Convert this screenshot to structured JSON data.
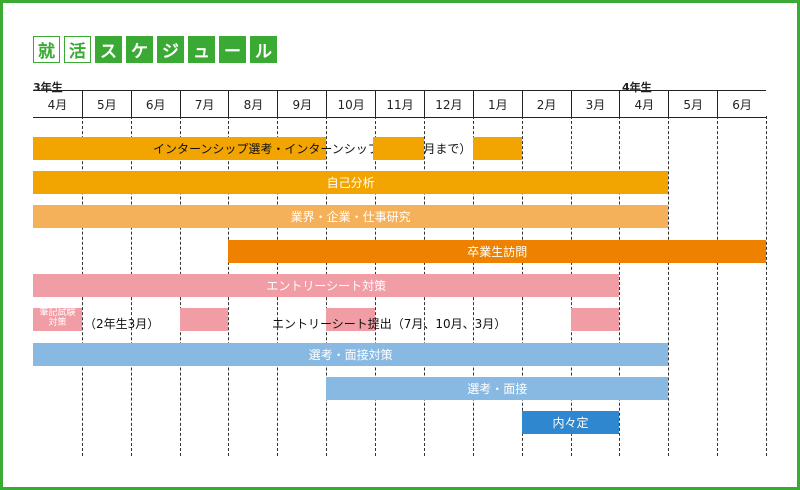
{
  "title": {
    "chars": [
      {
        "text": "就",
        "style": "outline"
      },
      {
        "text": "活",
        "style": "outline"
      },
      {
        "text": "ス",
        "style": "solid"
      },
      {
        "text": "ケ",
        "style": "solid"
      },
      {
        "text": "ジ",
        "style": "solid"
      },
      {
        "text": "ュ",
        "style": "solid"
      },
      {
        "text": "ー",
        "style": "solid"
      },
      {
        "text": "ル",
        "style": "solid"
      }
    ]
  },
  "years": {
    "start": "3年生",
    "later": "4年生"
  },
  "months": [
    "4月",
    "5月",
    "6月",
    "7月",
    "8月",
    "9月",
    "10月",
    "11月",
    "12月",
    "1月",
    "2月",
    "3月",
    "4月",
    "5月",
    "6月"
  ],
  "colors": {
    "green": "#3aaa35",
    "orange": "#f2a400",
    "orange_light": "#f5b05a",
    "orange_dark": "#ee8200",
    "pink": "#f19da5",
    "blue": "#88b9e2",
    "blue_dark": "#2f87cf"
  },
  "rows": [
    {
      "name": "internship",
      "segments": [
        {
          "start": 0,
          "end": 6,
          "color": "orange",
          "text": "インターンシップ選考・インターンシップ参加（1月まで）"
        },
        {
          "start": 6.95,
          "end": 8,
          "color": "orange",
          "text": ""
        },
        {
          "start": 9,
          "end": 10,
          "color": "orange",
          "text": ""
        }
      ]
    },
    {
      "name": "self-analysis",
      "segments": [
        {
          "start": 0,
          "end": 13,
          "color": "orange",
          "text": "自己分析"
        }
      ]
    },
    {
      "name": "industry-research",
      "segments": [
        {
          "start": 0,
          "end": 13,
          "color": "orange_light",
          "text": "業界・企業・仕事研究"
        }
      ]
    },
    {
      "name": "alumni-visit",
      "segments": [
        {
          "start": 4,
          "end": 15,
          "color": "orange_dark",
          "text": "卒業生訪問"
        }
      ]
    },
    {
      "name": "entry-sheet-prep",
      "segments": [
        {
          "start": 0,
          "end": 12,
          "color": "pink",
          "text": "エントリーシート対策"
        }
      ]
    },
    {
      "name": "written-test",
      "segments": [
        {
          "start": 0,
          "end": 1,
          "color": "pink",
          "text": ""
        },
        {
          "start": 3,
          "end": 4,
          "color": "pink",
          "text": ""
        },
        {
          "start": 6,
          "end": 7,
          "color": "pink",
          "text": ""
        },
        {
          "start": 11,
          "end": 12,
          "color": "pink",
          "text": ""
        }
      ]
    },
    {
      "name": "selection-interview-prep",
      "segments": [
        {
          "start": 0,
          "end": 13,
          "color": "blue",
          "text": "選考・面接対策"
        }
      ]
    },
    {
      "name": "selection-interview",
      "segments": [
        {
          "start": 6,
          "end": 13,
          "color": "blue",
          "text": "選考・面接"
        }
      ]
    },
    {
      "name": "job-offer",
      "segments": [
        {
          "start": 10,
          "end": 12,
          "color": "blue_dark",
          "text": "内々定"
        }
      ]
    }
  ],
  "written_test": {
    "small_label_line1": "筆記試験",
    "small_label_line2": "対策",
    "note": "（2年生3月）",
    "es_note": "エントリーシート提出（7月、10月、3月）"
  }
}
